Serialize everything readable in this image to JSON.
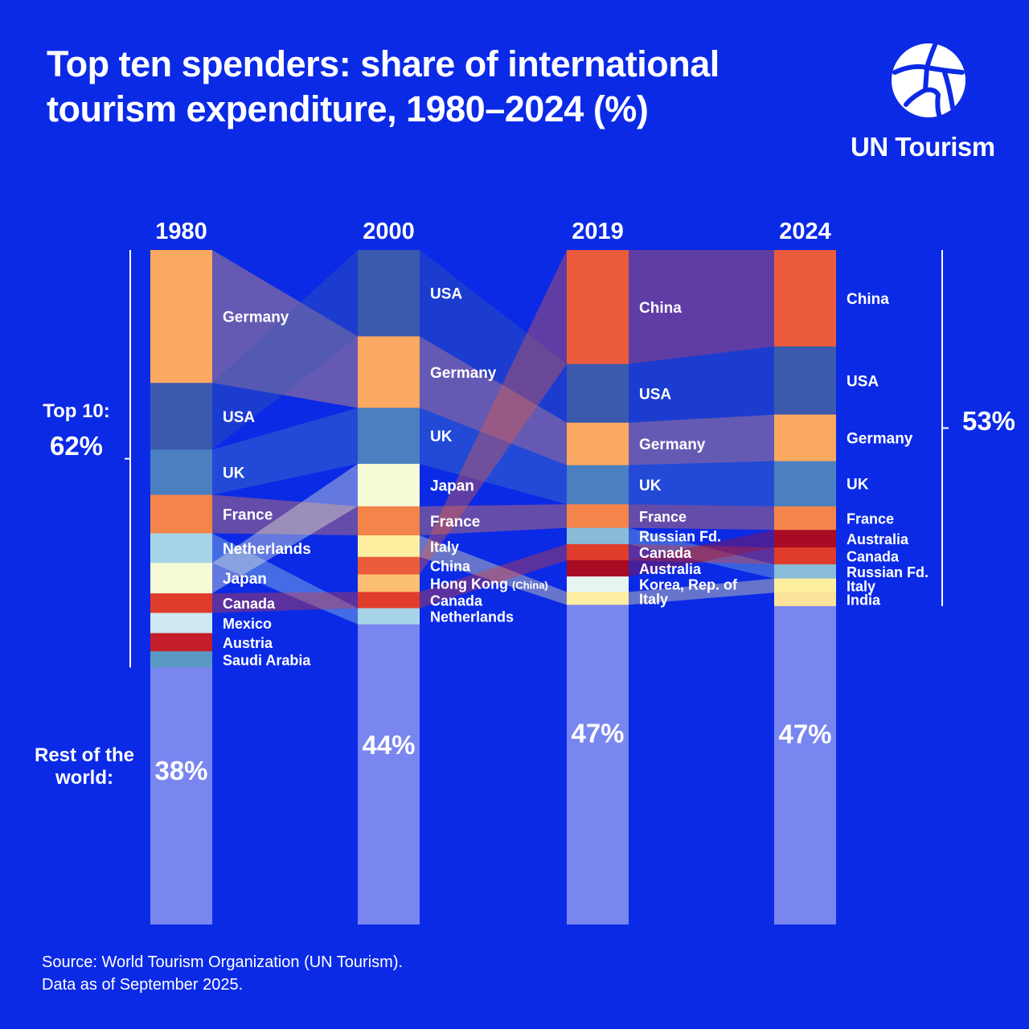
{
  "title": "Top ten spenders: share of international tourism expenditure, 1980–2024 (%)",
  "brand": "UN Tourism",
  "source": [
    "Source: World Tourism Organization (UN Tourism).",
    "Data as of September 2025."
  ],
  "colors": {
    "background": "#0b2ae6",
    "rest": "#7a86f0",
    "Germany": "#fba860",
    "USA": "#3b5aae",
    "UK": "#4a7fc0",
    "France": "#f4844a",
    "Netherlands": "#a6d4e6",
    "Japan": "#f6fbd6",
    "Canada": "#e03c2c",
    "Mexico": "#cde8f0",
    "Austria": "#c41e2a",
    "Saudi Arabia": "#5b98c4",
    "China": "#ea5c3c",
    "Italy": "#fdefa0",
    "Hong Kong (China)": "#fdbf72",
    "Russian Fd.": "#88bcd8",
    "Australia": "#a80c24",
    "Korea, Rep. of": "#e6f4f2",
    "India": "#fde29a"
  },
  "chart_data": {
    "type": "stacked-bar",
    "title": "Top ten spenders: share of international tourism expenditure, 1980–2024 (%)",
    "ylim": [
      0,
      100
    ],
    "categories": [
      "1980",
      "2000",
      "2019",
      "2024"
    ],
    "columns": [
      {
        "year": "1980",
        "top10_label": "Top 10:",
        "top10_value": "62%",
        "rest_label": "Rest of the world:",
        "rest_value": "38%",
        "segments": [
          [
            "Germany",
            19.7
          ],
          [
            "USA",
            9.9
          ],
          [
            "UK",
            6.7
          ],
          [
            "France",
            5.7
          ],
          [
            "Netherlands",
            4.4
          ],
          [
            "Japan",
            4.5
          ],
          [
            "Canada",
            2.9
          ],
          [
            "Mexico",
            3.0
          ],
          [
            "Austria",
            2.7
          ],
          [
            "Saudi Arabia",
            2.4
          ]
        ]
      },
      {
        "year": "2000",
        "rest_value": "44%",
        "segments": [
          [
            "USA",
            12.8
          ],
          [
            "Germany",
            10.6
          ],
          [
            "UK",
            8.3
          ],
          [
            "Japan",
            6.3
          ],
          [
            "France",
            4.3
          ],
          [
            "Italy",
            3.2
          ],
          [
            "China",
            2.6
          ],
          [
            "Hong Kong (China)",
            2.6
          ],
          [
            "Canada",
            2.4
          ],
          [
            "Netherlands",
            2.4
          ]
        ]
      },
      {
        "year": "2019",
        "rest_value": "47%",
        "segments": [
          [
            "China",
            16.9
          ],
          [
            "USA",
            8.7
          ],
          [
            "Germany",
            6.3
          ],
          [
            "UK",
            5.8
          ],
          [
            "France",
            3.5
          ],
          [
            "Russian Fd.",
            2.4
          ],
          [
            "Canada",
            2.4
          ],
          [
            "Australia",
            2.4
          ],
          [
            "Korea, Rep. of",
            2.3
          ],
          [
            "Italy",
            1.9
          ]
        ]
      },
      {
        "year": "2024",
        "top10_value": "53%",
        "rest_value": "47%",
        "segments": [
          [
            "China",
            14.3
          ],
          [
            "USA",
            10.1
          ],
          [
            "Germany",
            6.9
          ],
          [
            "UK",
            6.7
          ],
          [
            "France",
            3.5
          ],
          [
            "Australia",
            2.6
          ],
          [
            "Canada",
            2.5
          ],
          [
            "Russian Fd.",
            2.1
          ],
          [
            "Italy",
            2.1
          ],
          [
            "India",
            2.0
          ]
        ]
      }
    ]
  }
}
